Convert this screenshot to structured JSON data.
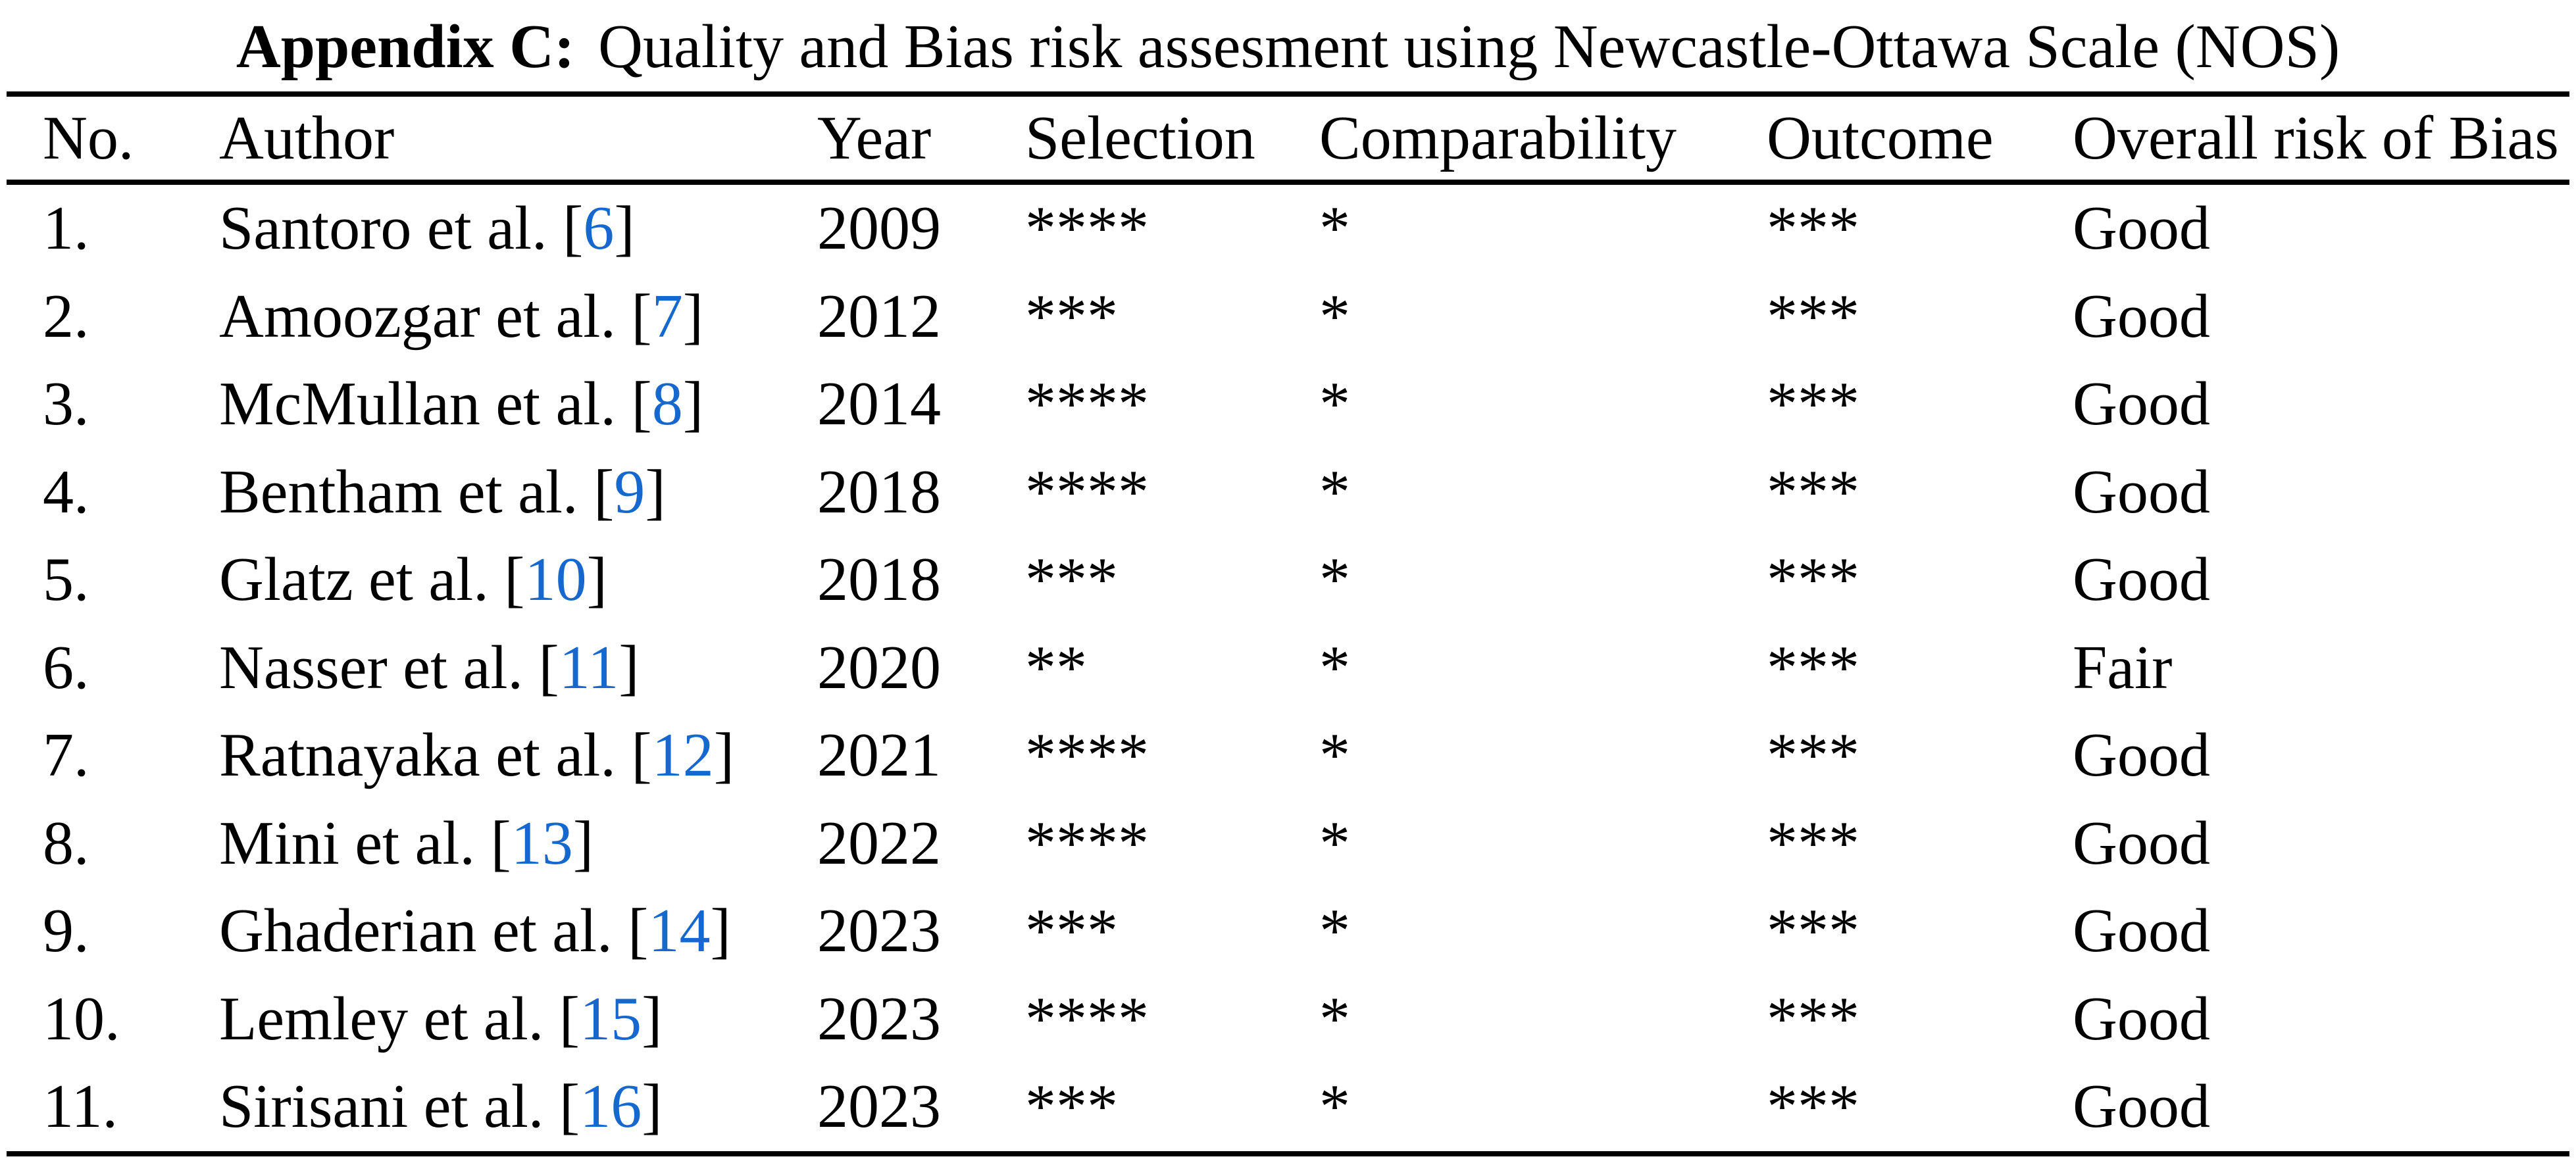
{
  "title": {
    "bold": "Appendix C:",
    "rest": "Quality and Bias risk assesment using Newcastle-Ottawa Scale (NOS)"
  },
  "colors": {
    "text": "#000000",
    "background": "#FFFFFF",
    "citation_blue": "#1668CF",
    "rule_black": "#000000"
  },
  "table": {
    "bracket_open": "[",
    "bracket_close": "]",
    "columns": [
      "No.",
      "Author",
      "Year",
      "Selection",
      "Comparability",
      "Outcome",
      "Overall risk of Bias"
    ],
    "rows": [
      {
        "no": "1.",
        "author": "Santoro et al.",
        "ref": "6",
        "year": "2009",
        "selection": "****",
        "comparability": "*",
        "outcome": "***",
        "overall": "Good"
      },
      {
        "no": "2.",
        "author": "Amoozgar et al.",
        "ref": "7",
        "year": "2012",
        "selection": "***",
        "comparability": "*",
        "outcome": "***",
        "overall": "Good"
      },
      {
        "no": "3.",
        "author": "McMullan et al.",
        "ref": "8",
        "year": "2014",
        "selection": "****",
        "comparability": "*",
        "outcome": "***",
        "overall": "Good"
      },
      {
        "no": "4.",
        "author": "Bentham et al.",
        "ref": "9",
        "year": "2018",
        "selection": "****",
        "comparability": "*",
        "outcome": "***",
        "overall": "Good"
      },
      {
        "no": "5.",
        "author": "Glatz et al.",
        "ref": "10",
        "year": "2018",
        "selection": "***",
        "comparability": "*",
        "outcome": "***",
        "overall": "Good"
      },
      {
        "no": "6.",
        "author": "Nasser et al.",
        "ref": "11",
        "year": "2020",
        "selection": "**",
        "comparability": "*",
        "outcome": "***",
        "overall": "Fair"
      },
      {
        "no": "7.",
        "author": "Ratnayaka et al.",
        "ref": "12",
        "year": "2021",
        "selection": "****",
        "comparability": "*",
        "outcome": "***",
        "overall": "Good"
      },
      {
        "no": "8.",
        "author": "Mini et al.",
        "ref": "13",
        "year": "2022",
        "selection": "****",
        "comparability": "*",
        "outcome": "***",
        "overall": "Good"
      },
      {
        "no": "9.",
        "author": "Ghaderian et al.",
        "ref": "14",
        "year": "2023",
        "selection": "***",
        "comparability": "*",
        "outcome": "***",
        "overall": "Good"
      },
      {
        "no": "10.",
        "author": "Lemley et al.",
        "ref": "15",
        "year": "2023",
        "selection": "****",
        "comparability": "*",
        "outcome": "***",
        "overall": "Good"
      },
      {
        "no": "11.",
        "author": "Sirisani et al.",
        "ref": "16",
        "year": "2023",
        "selection": "***",
        "comparability": "*",
        "outcome": "***",
        "overall": "Good"
      }
    ]
  }
}
